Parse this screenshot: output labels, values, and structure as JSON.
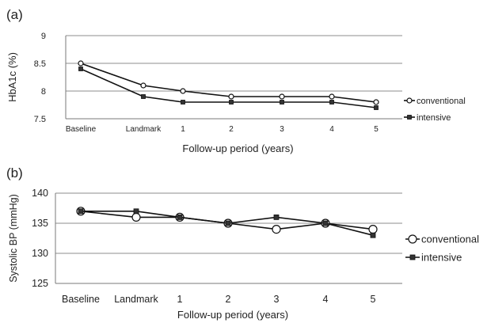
{
  "chart_data": [
    {
      "panel_label": "(a)",
      "type": "line",
      "categories": [
        "Baseline",
        "Landmark",
        "1",
        "2",
        "3",
        "4",
        "5"
      ],
      "ylabel": "HbA1c (%)",
      "xlabel": "Follow-up period (years)",
      "ylim": [
        7.5,
        9
      ],
      "yticks": [
        "7.5",
        "8",
        "8.5",
        "9"
      ],
      "grid": true,
      "legend": "right",
      "series": [
        {
          "name": "conventional",
          "marker": "circle",
          "values": [
            8.5,
            8.1,
            8.0,
            7.9,
            7.9,
            7.9,
            7.8
          ]
        },
        {
          "name": "intensive",
          "marker": "square",
          "values": [
            8.4,
            7.9,
            7.8,
            7.8,
            7.8,
            7.8,
            7.7
          ]
        }
      ]
    },
    {
      "panel_label": "(b)",
      "type": "line",
      "categories": [
        "Baseline",
        "Landmark",
        "1",
        "2",
        "3",
        "4",
        "5"
      ],
      "ylabel": "Systolic BP (mmHg)",
      "xlabel": "Follow-up period (years)",
      "ylim": [
        125,
        140
      ],
      "yticks": [
        "125",
        "130",
        "135",
        "140"
      ],
      "grid": true,
      "legend": "right",
      "series": [
        {
          "name": "conventional",
          "marker": "circle",
          "values": [
            137,
            136,
            136,
            135,
            134,
            135,
            134
          ]
        },
        {
          "name": "intensive",
          "marker": "square",
          "values": [
            137,
            137,
            136,
            135,
            136,
            135,
            133
          ]
        }
      ]
    }
  ]
}
